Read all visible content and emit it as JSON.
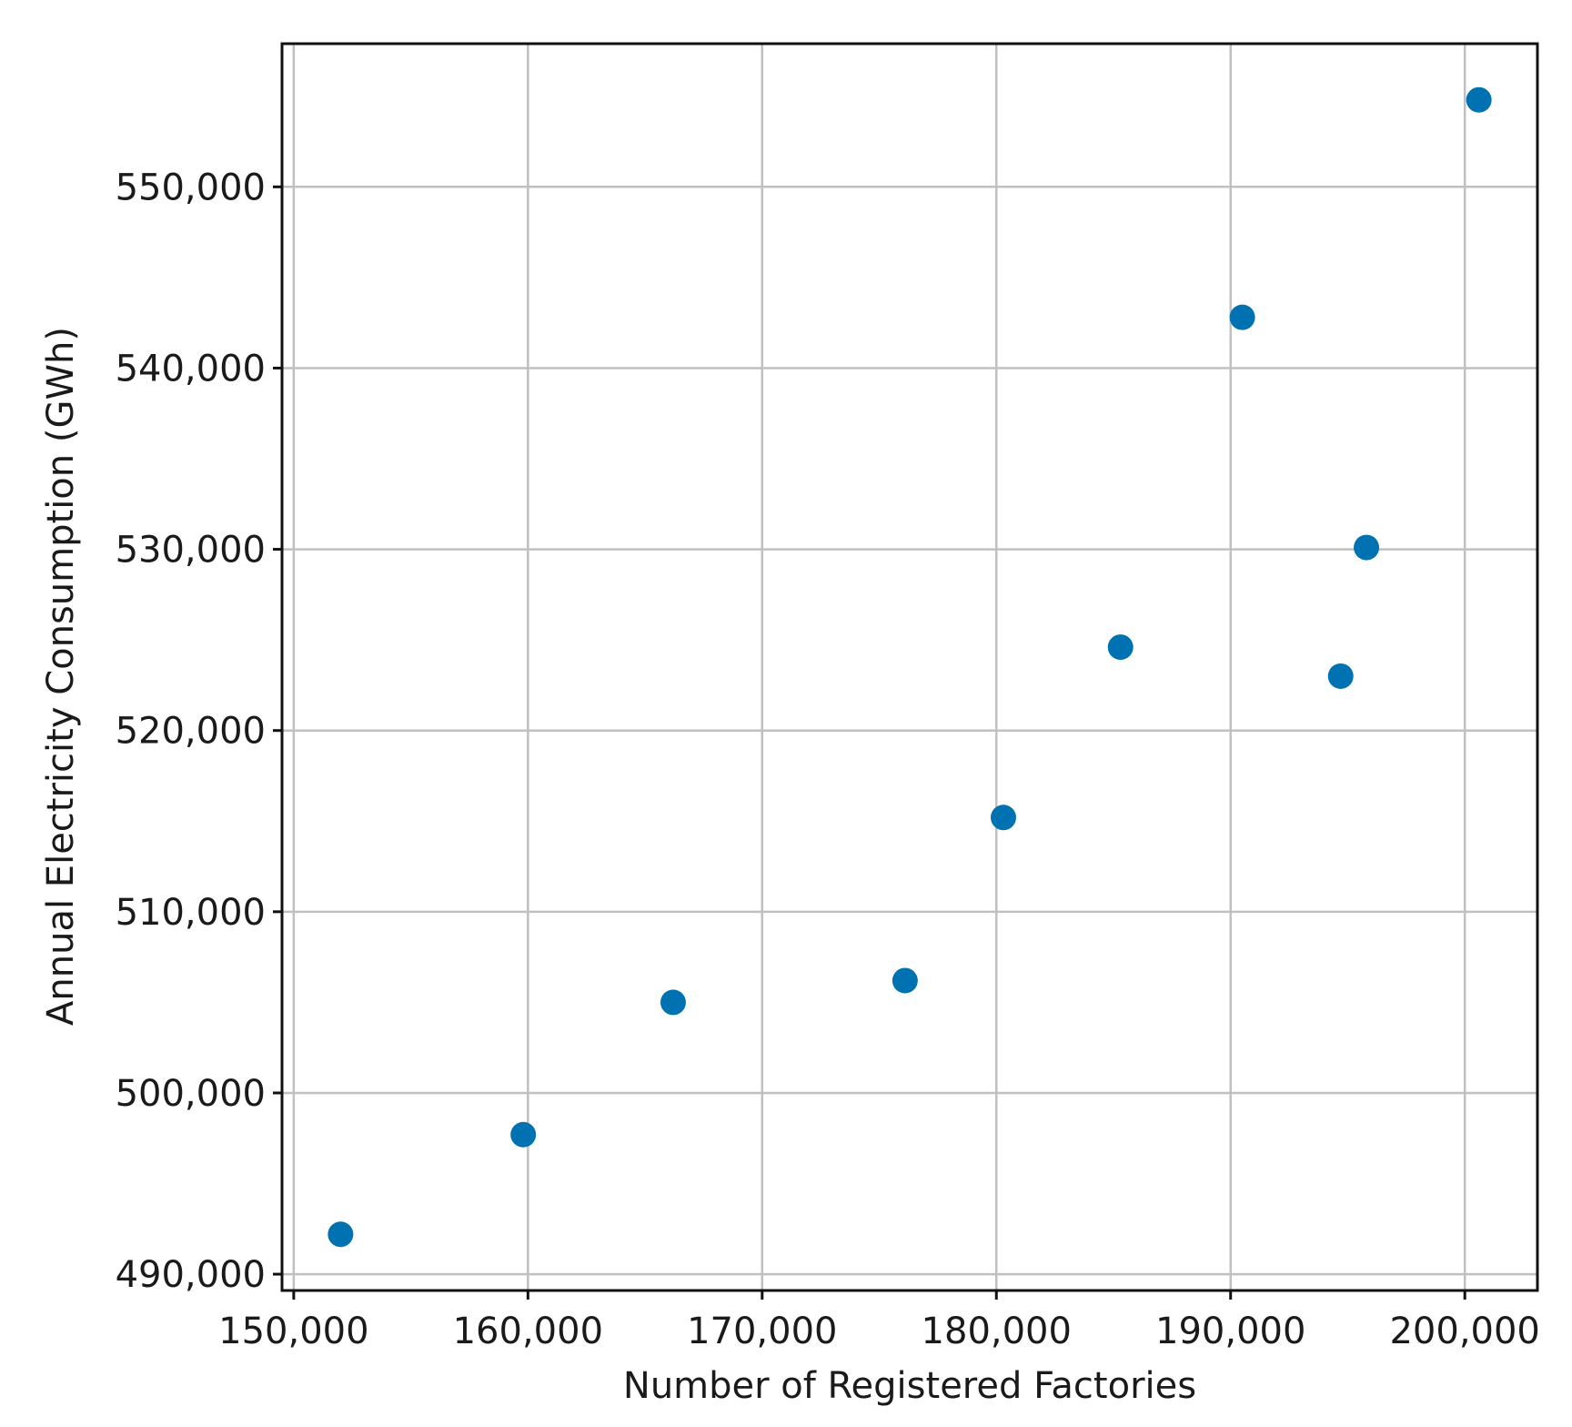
{
  "chart_data": {
    "type": "scatter",
    "title": "",
    "xlabel": "Number of Registered Factories",
    "ylabel": "Annual Electricity Consumption (GWh)",
    "xlim": [
      149500,
      203100
    ],
    "ylim": [
      489100,
      557900
    ],
    "x_ticks": [
      150000,
      160000,
      170000,
      180000,
      190000,
      200000
    ],
    "x_tick_labels": [
      "150,000",
      "160,000",
      "170,000",
      "180,000",
      "190,000",
      "200,000"
    ],
    "y_ticks": [
      490000,
      500000,
      510000,
      520000,
      530000,
      540000,
      550000
    ],
    "y_tick_labels": [
      "490,000",
      "500,000",
      "510,000",
      "520,000",
      "530,000",
      "540,000",
      "550,000"
    ],
    "grid": true,
    "marker_color": "#0072b2",
    "points": [
      {
        "x": 152000,
        "y": 492200
      },
      {
        "x": 159800,
        "y": 497700
      },
      {
        "x": 166200,
        "y": 505000
      },
      {
        "x": 176100,
        "y": 506200
      },
      {
        "x": 180300,
        "y": 515200
      },
      {
        "x": 185300,
        "y": 524600
      },
      {
        "x": 190500,
        "y": 542800
      },
      {
        "x": 194700,
        "y": 523000
      },
      {
        "x": 195800,
        "y": 530100
      },
      {
        "x": 200600,
        "y": 554800
      }
    ]
  }
}
